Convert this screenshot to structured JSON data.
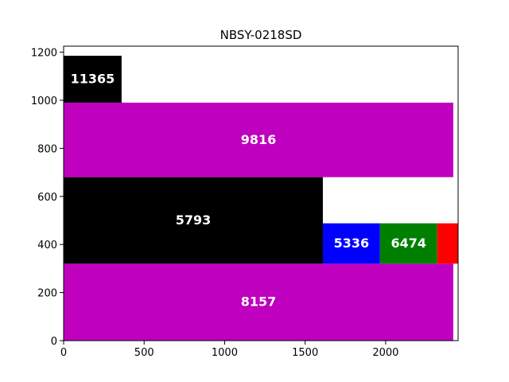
{
  "chart_data": {
    "type": "bar",
    "title": "NBSY-0218SD",
    "xlabel": "",
    "ylabel": "",
    "xlim": [
      0,
      2450
    ],
    "ylim": [
      0,
      1225
    ],
    "xticks": [
      0,
      500,
      1000,
      1500,
      2000
    ],
    "yticks": [
      0,
      200,
      400,
      600,
      800,
      1000,
      1200
    ],
    "grid": false,
    "bars": [
      {
        "label": "8157",
        "x0": 0,
        "x1": 2420,
        "y0": 320,
        "y1": 0,
        "color": "#bf00bf"
      },
      {
        "label": "5793",
        "x0": 0,
        "x1": 1610,
        "y0": 680,
        "y1": 320,
        "color": "#000000"
      },
      {
        "label": "5336",
        "x0": 1610,
        "x1": 1965,
        "y0": 488,
        "y1": 320,
        "color": "#0000ff"
      },
      {
        "label": "6474",
        "x0": 1965,
        "x1": 2320,
        "y0": 488,
        "y1": 320,
        "color": "#008000"
      },
      {
        "label": "",
        "x0": 2320,
        "x1": 2450,
        "y0": 488,
        "y1": 320,
        "color": "#ff0000"
      },
      {
        "label": "9816",
        "x0": 0,
        "x1": 2420,
        "y0": 990,
        "y1": 680,
        "color": "#bf00bf"
      },
      {
        "label": "11365",
        "x0": 0,
        "x1": 360,
        "y0": 1185,
        "y1": 990,
        "color": "#000000"
      }
    ]
  }
}
